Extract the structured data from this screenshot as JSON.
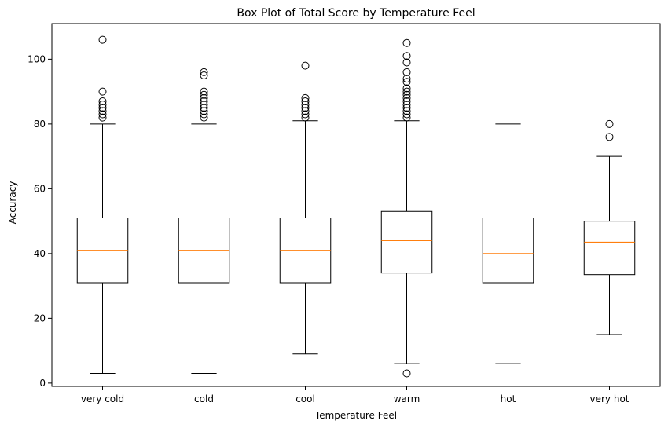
{
  "chart_data": {
    "type": "boxplot",
    "title": "Box Plot of Total Score by Temperature Feel",
    "xlabel": "Temperature Feel",
    "ylabel": "Accuracy",
    "ylim": [
      -1,
      111
    ],
    "yticks": [
      0,
      20,
      40,
      60,
      80,
      100
    ],
    "grid": false,
    "median_color": "#ff7f0e",
    "categories": [
      "very cold",
      "cold",
      "cool",
      "warm",
      "hot",
      "very hot"
    ],
    "boxes": [
      {
        "category": "very cold",
        "whisker_low": 3,
        "q1": 31,
        "median": 41,
        "q3": 51,
        "whisker_high": 80,
        "outliers": [
          82,
          83,
          84,
          85,
          86,
          87,
          90,
          106
        ]
      },
      {
        "category": "cold",
        "whisker_low": 3,
        "q1": 31,
        "median": 41,
        "q3": 51,
        "whisker_high": 80,
        "outliers": [
          82,
          83,
          84,
          85,
          86,
          87,
          88,
          89,
          90,
          95,
          96
        ]
      },
      {
        "category": "cool",
        "whisker_low": 9,
        "q1": 31,
        "median": 41,
        "q3": 51,
        "whisker_high": 81,
        "outliers": [
          82,
          83,
          84,
          85,
          86,
          87,
          88,
          98
        ]
      },
      {
        "category": "warm",
        "whisker_low": 6,
        "q1": 34,
        "median": 44,
        "q3": 53,
        "whisker_high": 81,
        "outliers": [
          3,
          82,
          83,
          84,
          85,
          86,
          87,
          88,
          89,
          90,
          91,
          93,
          94,
          96,
          99,
          101,
          105
        ]
      },
      {
        "category": "hot",
        "whisker_low": 6,
        "q1": 31,
        "median": 40,
        "q3": 51,
        "whisker_high": 80,
        "outliers": []
      },
      {
        "category": "very hot",
        "whisker_low": 15,
        "q1": 33.5,
        "median": 43.5,
        "q3": 50,
        "whisker_high": 70,
        "outliers": [
          76,
          80
        ]
      }
    ]
  }
}
